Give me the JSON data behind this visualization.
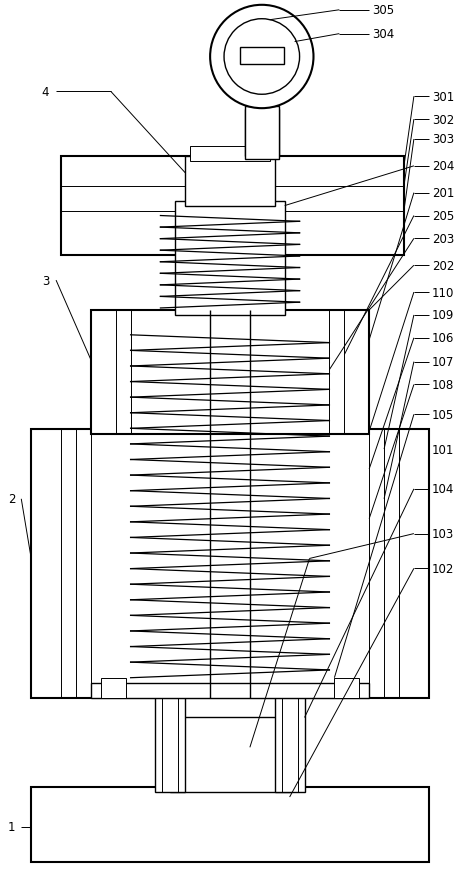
{
  "bg_color": "#ffffff",
  "lw_thick": 1.5,
  "lw_med": 1.0,
  "lw_thin": 0.7,
  "fig_width": 4.61,
  "fig_height": 8.79,
  "dpi": 100
}
